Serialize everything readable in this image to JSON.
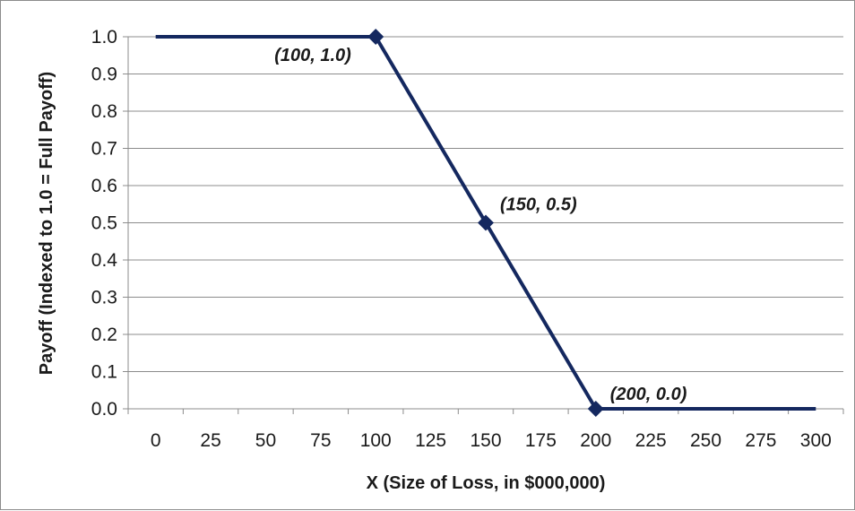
{
  "chart_data": {
    "type": "line",
    "title": "",
    "xlabel": "X (Size of Loss, in $000,000)",
    "ylabel": "Payoff (Indexed to 1.0 = Full Payoff)",
    "xlim": [
      -12.5,
      312.5
    ],
    "ylim": [
      0,
      1.0
    ],
    "x_ticks": [
      "0",
      "25",
      "50",
      "75",
      "100",
      "125",
      "150",
      "175",
      "200",
      "225",
      "250",
      "275",
      "300"
    ],
    "y_ticks": [
      "0.0",
      "0.1",
      "0.2",
      "0.3",
      "0.4",
      "0.5",
      "0.6",
      "0.7",
      "0.8",
      "0.9",
      "1.0"
    ],
    "grid": "horizontal",
    "legend": "none",
    "series": [
      {
        "color": "#14285f",
        "points": [
          {
            "x": 0,
            "y": 1.0
          },
          {
            "x": 100,
            "y": 1.0
          },
          {
            "x": 150,
            "y": 0.5
          },
          {
            "x": 200,
            "y": 0.0
          },
          {
            "x": 300,
            "y": 0.0
          }
        ],
        "markers": [
          {
            "x": 100,
            "y": 1.0
          },
          {
            "x": 150,
            "y": 0.5
          },
          {
            "x": 200,
            "y": 0.0
          }
        ]
      }
    ],
    "annotations": [
      {
        "text": "(100, 1.0)",
        "x": 100,
        "y": 1.0
      },
      {
        "text": "(150, 0.5)",
        "x": 150,
        "y": 0.5
      },
      {
        "text": "(200, 0.0)",
        "x": 200,
        "y": 0.0
      }
    ]
  }
}
